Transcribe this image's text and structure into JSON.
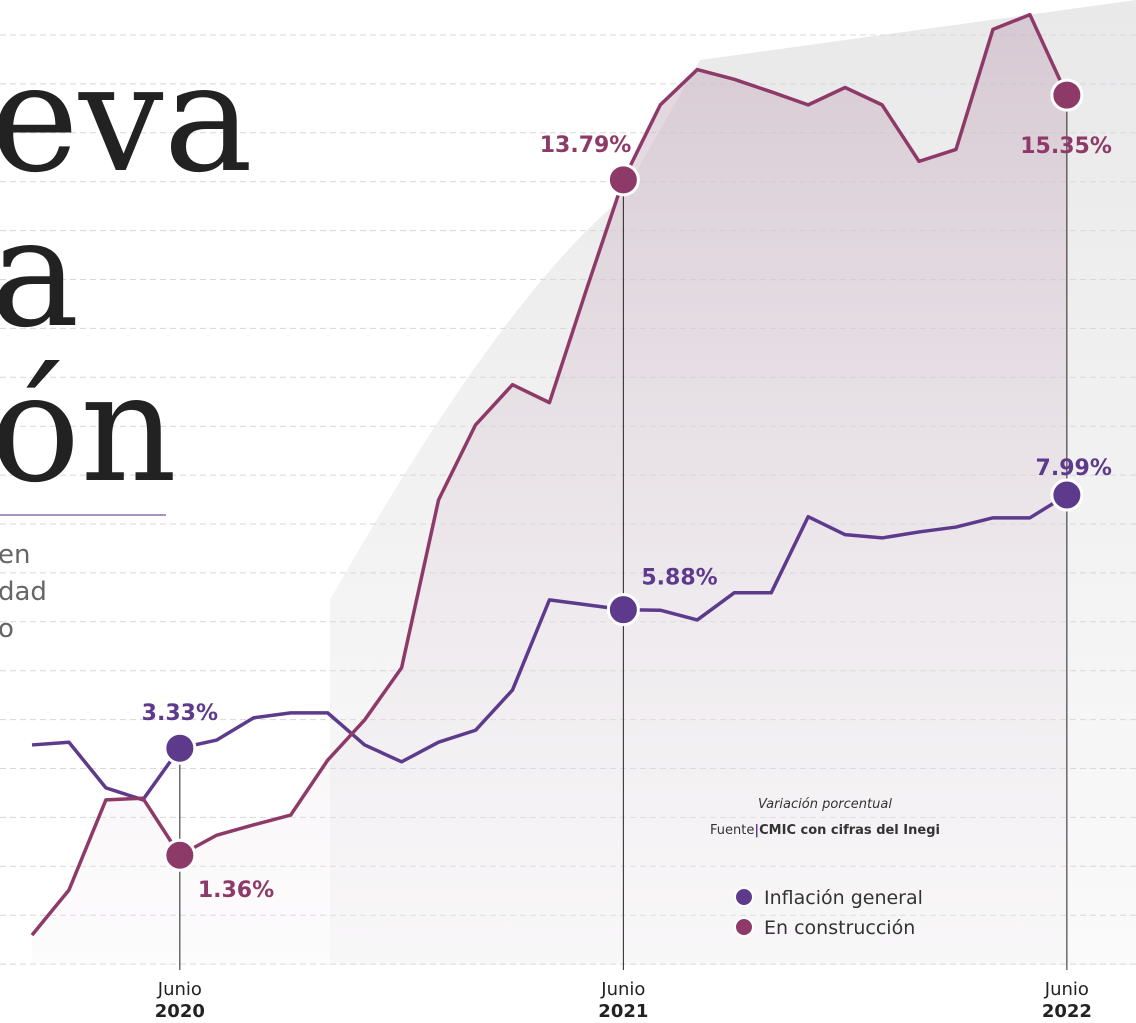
{
  "chart_data": {
    "type": "line",
    "title_fragments": [
      "eva",
      "a",
      "ón"
    ],
    "subtitle_fragments": [
      "en",
      "dad",
      "o"
    ],
    "note": "Variación porcentual",
    "source_label": "Fuente",
    "source": "CMIC con cifras del Inegi",
    "categories": [
      null,
      null,
      null,
      null,
      "Junio",
      null,
      null,
      null,
      null,
      null,
      null,
      null,
      null,
      null,
      null,
      null,
      "Junio",
      null,
      null,
      null,
      null,
      null,
      null,
      null,
      null,
      null,
      null,
      null,
      "Junio"
    ],
    "category_years": [
      null,
      null,
      null,
      null,
      "2020",
      null,
      null,
      null,
      null,
      null,
      null,
      null,
      null,
      null,
      null,
      null,
      "2021",
      null,
      null,
      null,
      null,
      null,
      null,
      null,
      null,
      null,
      null,
      null,
      "2022"
    ],
    "ylim": [
      -0.66,
      17.1
    ],
    "legend": "lower right",
    "series": [
      {
        "name": "Inflación general",
        "color": "#5e3a8c",
        "values": [
          3.39,
          3.44,
          2.6,
          2.38,
          3.33,
          3.48,
          3.89,
          3.98,
          3.98,
          3.39,
          3.08,
          3.44,
          3.66,
          4.4,
          6.06,
          5.97,
          5.88,
          5.87,
          5.69,
          6.19,
          6.19,
          7.59,
          7.26,
          7.2,
          7.31,
          7.4,
          7.57,
          7.57,
          7.99
        ],
        "value_labels": [
          null,
          null,
          null,
          null,
          "3.33%",
          null,
          null,
          null,
          null,
          null,
          null,
          null,
          null,
          null,
          null,
          null,
          "5.88%",
          null,
          null,
          null,
          null,
          null,
          null,
          null,
          null,
          null,
          null,
          null,
          "7.99%"
        ]
      },
      {
        "name": "En construcción",
        "color": "#8e3a68",
        "values": [
          -0.11,
          0.72,
          2.38,
          2.41,
          1.36,
          1.73,
          1.92,
          2.1,
          3.11,
          3.85,
          4.81,
          7.9,
          9.28,
          10.02,
          9.69,
          11.77,
          13.79,
          15.17,
          15.82,
          15.64,
          15.41,
          15.17,
          15.49,
          15.17,
          14.13,
          14.35,
          16.56,
          16.83,
          15.35
        ],
        "value_labels": [
          null,
          null,
          null,
          null,
          "1.36%",
          null,
          null,
          null,
          null,
          null,
          null,
          null,
          null,
          null,
          null,
          null,
          "13.79%",
          null,
          null,
          null,
          null,
          null,
          null,
          null,
          null,
          null,
          null,
          null,
          "15.35%"
        ]
      }
    ]
  }
}
